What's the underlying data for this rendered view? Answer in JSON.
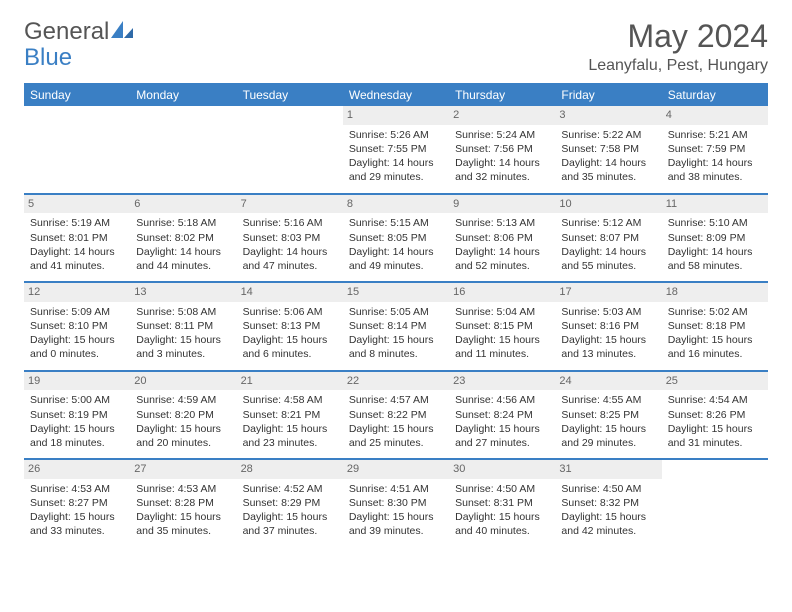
{
  "logo": {
    "left": "General",
    "right": "Blue"
  },
  "title": "May 2024",
  "location": "Leanyfalu, Pest, Hungary",
  "colors": {
    "header_bg": "#3a7fc4",
    "header_text": "#ffffff",
    "daynum_bg": "#eeeeee",
    "daynum_text": "#666666",
    "body_text": "#333333",
    "page_bg": "#ffffff"
  },
  "day_headers": [
    "Sunday",
    "Monday",
    "Tuesday",
    "Wednesday",
    "Thursday",
    "Friday",
    "Saturday"
  ],
  "weeks": [
    [
      null,
      null,
      null,
      {
        "n": "1",
        "sunrise": "5:26 AM",
        "sunset": "7:55 PM",
        "daylight": "14 hours and 29 minutes."
      },
      {
        "n": "2",
        "sunrise": "5:24 AM",
        "sunset": "7:56 PM",
        "daylight": "14 hours and 32 minutes."
      },
      {
        "n": "3",
        "sunrise": "5:22 AM",
        "sunset": "7:58 PM",
        "daylight": "14 hours and 35 minutes."
      },
      {
        "n": "4",
        "sunrise": "5:21 AM",
        "sunset": "7:59 PM",
        "daylight": "14 hours and 38 minutes."
      }
    ],
    [
      {
        "n": "5",
        "sunrise": "5:19 AM",
        "sunset": "8:01 PM",
        "daylight": "14 hours and 41 minutes."
      },
      {
        "n": "6",
        "sunrise": "5:18 AM",
        "sunset": "8:02 PM",
        "daylight": "14 hours and 44 minutes."
      },
      {
        "n": "7",
        "sunrise": "5:16 AM",
        "sunset": "8:03 PM",
        "daylight": "14 hours and 47 minutes."
      },
      {
        "n": "8",
        "sunrise": "5:15 AM",
        "sunset": "8:05 PM",
        "daylight": "14 hours and 49 minutes."
      },
      {
        "n": "9",
        "sunrise": "5:13 AM",
        "sunset": "8:06 PM",
        "daylight": "14 hours and 52 minutes."
      },
      {
        "n": "10",
        "sunrise": "5:12 AM",
        "sunset": "8:07 PM",
        "daylight": "14 hours and 55 minutes."
      },
      {
        "n": "11",
        "sunrise": "5:10 AM",
        "sunset": "8:09 PM",
        "daylight": "14 hours and 58 minutes."
      }
    ],
    [
      {
        "n": "12",
        "sunrise": "5:09 AM",
        "sunset": "8:10 PM",
        "daylight": "15 hours and 0 minutes."
      },
      {
        "n": "13",
        "sunrise": "5:08 AM",
        "sunset": "8:11 PM",
        "daylight": "15 hours and 3 minutes."
      },
      {
        "n": "14",
        "sunrise": "5:06 AM",
        "sunset": "8:13 PM",
        "daylight": "15 hours and 6 minutes."
      },
      {
        "n": "15",
        "sunrise": "5:05 AM",
        "sunset": "8:14 PM",
        "daylight": "15 hours and 8 minutes."
      },
      {
        "n": "16",
        "sunrise": "5:04 AM",
        "sunset": "8:15 PM",
        "daylight": "15 hours and 11 minutes."
      },
      {
        "n": "17",
        "sunrise": "5:03 AM",
        "sunset": "8:16 PM",
        "daylight": "15 hours and 13 minutes."
      },
      {
        "n": "18",
        "sunrise": "5:02 AM",
        "sunset": "8:18 PM",
        "daylight": "15 hours and 16 minutes."
      }
    ],
    [
      {
        "n": "19",
        "sunrise": "5:00 AM",
        "sunset": "8:19 PM",
        "daylight": "15 hours and 18 minutes."
      },
      {
        "n": "20",
        "sunrise": "4:59 AM",
        "sunset": "8:20 PM",
        "daylight": "15 hours and 20 minutes."
      },
      {
        "n": "21",
        "sunrise": "4:58 AM",
        "sunset": "8:21 PM",
        "daylight": "15 hours and 23 minutes."
      },
      {
        "n": "22",
        "sunrise": "4:57 AM",
        "sunset": "8:22 PM",
        "daylight": "15 hours and 25 minutes."
      },
      {
        "n": "23",
        "sunrise": "4:56 AM",
        "sunset": "8:24 PM",
        "daylight": "15 hours and 27 minutes."
      },
      {
        "n": "24",
        "sunrise": "4:55 AM",
        "sunset": "8:25 PM",
        "daylight": "15 hours and 29 minutes."
      },
      {
        "n": "25",
        "sunrise": "4:54 AM",
        "sunset": "8:26 PM",
        "daylight": "15 hours and 31 minutes."
      }
    ],
    [
      {
        "n": "26",
        "sunrise": "4:53 AM",
        "sunset": "8:27 PM",
        "daylight": "15 hours and 33 minutes."
      },
      {
        "n": "27",
        "sunrise": "4:53 AM",
        "sunset": "8:28 PM",
        "daylight": "15 hours and 35 minutes."
      },
      {
        "n": "28",
        "sunrise": "4:52 AM",
        "sunset": "8:29 PM",
        "daylight": "15 hours and 37 minutes."
      },
      {
        "n": "29",
        "sunrise": "4:51 AM",
        "sunset": "8:30 PM",
        "daylight": "15 hours and 39 minutes."
      },
      {
        "n": "30",
        "sunrise": "4:50 AM",
        "sunset": "8:31 PM",
        "daylight": "15 hours and 40 minutes."
      },
      {
        "n": "31",
        "sunrise": "4:50 AM",
        "sunset": "8:32 PM",
        "daylight": "15 hours and 42 minutes."
      },
      null
    ]
  ],
  "labels": {
    "sunrise": "Sunrise:",
    "sunset": "Sunset:",
    "daylight": "Daylight:"
  }
}
